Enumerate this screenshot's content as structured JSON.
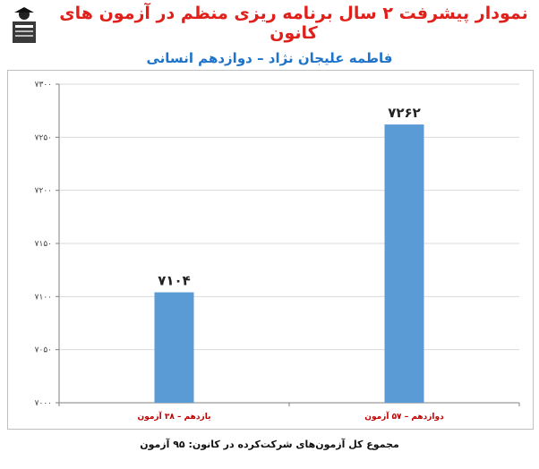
{
  "header": {
    "title": "نمودار پیشرفت ۲ سال برنامه ریزی منظم در آزمون های کانون",
    "subtitle": "فاطمه علیجان نژاد – دوازدهم انسانی",
    "logo_icon": "kanoon-logo-icon"
  },
  "footer": {
    "text": "مجموع کل آزمون‌های شرکت‌کرده در کانون:  ۹۵ آزمون"
  },
  "colors": {
    "bar": "#5b9bd5",
    "title": "#e0201b",
    "subtitle": "#1f73c9",
    "category_label": "#c00000"
  },
  "chart_data": {
    "type": "bar",
    "categories": [
      "یازدهم – ۳۸ آزمون",
      "دوازدهم – ۵۷ آزمون"
    ],
    "values": [
      7104,
      7262
    ],
    "value_labels": [
      "۷۱۰۴",
      "۷۲۶۲"
    ],
    "ylim": [
      7000,
      7300
    ],
    "yticks": [
      7000,
      7050,
      7100,
      7150,
      7200,
      7250,
      7300
    ],
    "ytick_labels": [
      "۷۰۰۰",
      "۷۰۵۰",
      "۷۱۰۰",
      "۷۱۵۰",
      "۷۲۰۰",
      "۷۲۵۰",
      "۷۳۰۰"
    ],
    "grid": true,
    "legend": "none"
  }
}
